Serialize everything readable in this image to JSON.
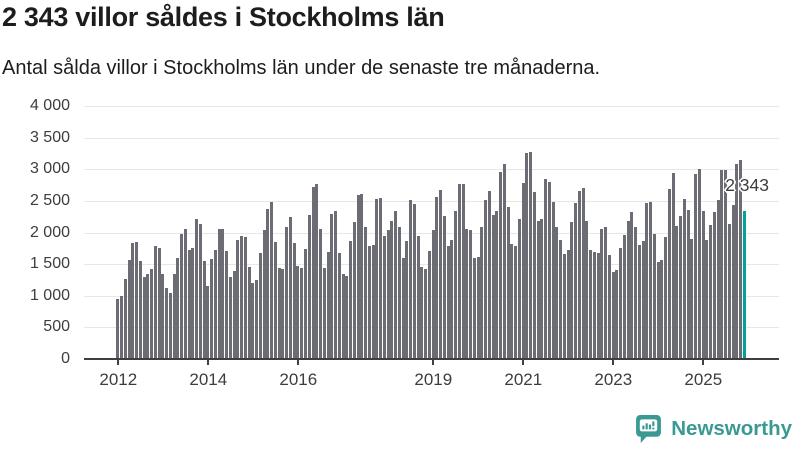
{
  "header": {
    "title": "2 343 villor såldes i Stockholms län",
    "subtitle": "Antal sålda villor i Stockholms län under de senaste tre månaderna."
  },
  "chart_data": {
    "type": "bar",
    "title": "2 343 villor såldes i Stockholms län",
    "subtitle": "Antal sålda villor i Stockholms län under de senaste tre månaderna.",
    "x_start_year": 2012,
    "frequency": "monthly",
    "ylim": [
      0,
      4000
    ],
    "grid": true,
    "y_tick_labels": [
      "4 000",
      "3 500",
      "3 000",
      "2 500",
      "2 000",
      "1 500",
      "1 000",
      "500",
      "0"
    ],
    "x_tick_years": [
      2012,
      2014,
      2016,
      2019,
      2021,
      2023,
      2025
    ],
    "bar_color": "#6c6c75",
    "highlight_color": "#00a29b",
    "values": [
      950,
      990,
      1270,
      1560,
      1830,
      1850,
      1550,
      1300,
      1340,
      1420,
      1790,
      1760,
      1350,
      1130,
      1050,
      1350,
      1590,
      1970,
      2050,
      1720,
      1750,
      2210,
      2140,
      1550,
      1160,
      1580,
      1720,
      2060,
      2060,
      1710,
      1300,
      1390,
      1880,
      1950,
      1935,
      1460,
      1210,
      1250,
      1670,
      2040,
      2380,
      2480,
      1850,
      1440,
      1420,
      2090,
      2250,
      1830,
      1470,
      1440,
      1740,
      2270,
      2720,
      2760,
      2050,
      1440,
      1690,
      2290,
      2340,
      1670,
      1340,
      1320,
      1870,
      2160,
      2590,
      2610,
      2090,
      1780,
      1800,
      2530,
      2540,
      1940,
      2040,
      2190,
      2340,
      2090,
      1600,
      1870,
      2510,
      2450,
      1950,
      1460,
      1430,
      1710,
      2040,
      2560,
      2680,
      2260,
      1790,
      1880,
      2340,
      2760,
      2760,
      2050,
      2040,
      1600,
      1620,
      2080,
      2510,
      2650,
      2270,
      2340,
      2960,
      3080,
      2400,
      1820,
      1780,
      2210,
      2780,
      3260,
      3280,
      2640,
      2180,
      2210,
      2840,
      2800,
      2490,
      2080,
      1890,
      1660,
      1730,
      2160,
      2470,
      2660,
      2700,
      2190,
      1730,
      1690,
      1670,
      2060,
      2080,
      1640,
      1380,
      1410,
      1750,
      1960,
      2190,
      2330,
      2080,
      1800,
      1870,
      2460,
      2490,
      1970,
      1540,
      1560,
      1930,
      2690,
      2940,
      2110,
      2260,
      2530,
      2360,
      1900,
      2920,
      3000,
      2340,
      1890,
      2120,
      2320,
      2510,
      2990,
      2990,
      2130,
      2430,
      3090,
      3140,
      2343
    ],
    "highlight": {
      "index": 167,
      "value": 2343,
      "label": "2 343"
    }
  },
  "footer": {
    "brand": "Newsworthy"
  }
}
